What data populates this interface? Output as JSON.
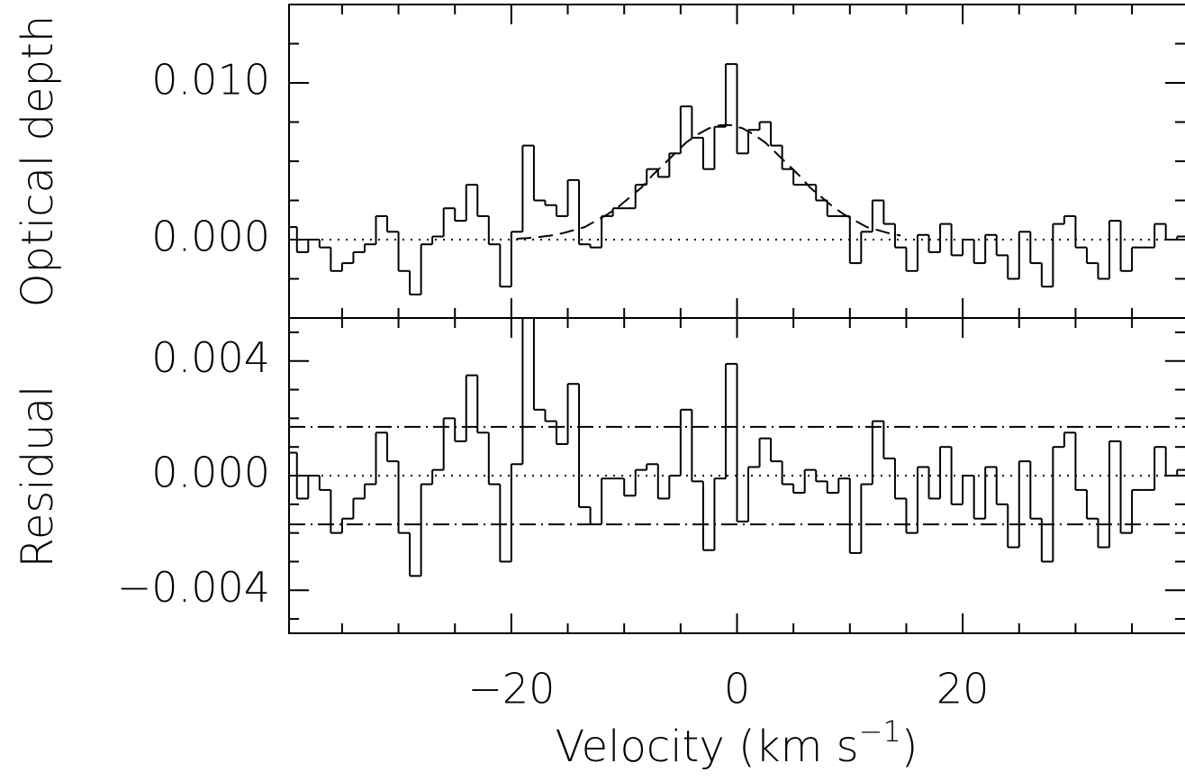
{
  "chart_data": [
    {
      "type": "step",
      "y_label": "Optical depth",
      "x": [
        -39.5,
        -38.5,
        -37.5,
        -36.5,
        -35.5,
        -34.5,
        -33.5,
        -32.5,
        -31.5,
        -30.5,
        -29.5,
        -28.5,
        -27.5,
        -26.5,
        -25.5,
        -24.5,
        -23.5,
        -22.5,
        -21.5,
        -20.5,
        -19.5,
        -18.5,
        -17.5,
        -16.5,
        -15.5,
        -14.5,
        -13.5,
        -12.5,
        -11.5,
        -10.5,
        -9.5,
        -8.5,
        -7.5,
        -6.5,
        -5.5,
        -4.5,
        -3.5,
        -2.5,
        -1.5,
        -0.5,
        0.5,
        1.5,
        2.5,
        3.5,
        4.5,
        5.5,
        6.5,
        7.5,
        8.5,
        9.5,
        10.5,
        11.5,
        12.5,
        13.5,
        14.5,
        15.5,
        16.5,
        17.5,
        18.5,
        19.5,
        20.5,
        21.5,
        22.5,
        23.5,
        24.5,
        25.5,
        26.5,
        27.5,
        28.5,
        29.5,
        30.5,
        31.5,
        32.5,
        33.5,
        34.5,
        35.5,
        36.5,
        37.5,
        38.5,
        39.5
      ],
      "values": [
        0.0008,
        -0.0008,
        0,
        -0.0005,
        -0.002,
        -0.0015,
        -0.0008,
        -0.0003,
        0.0015,
        0.0005,
        -0.002,
        -0.0035,
        -0.0003,
        0.0002,
        0.002,
        0.0012,
        0.0035,
        0.0015,
        -0.0003,
        -0.003,
        0.0005,
        0.006,
        0.0025,
        0.0022,
        0.0015,
        0.0038,
        -0.0003,
        -0.0005,
        0.0015,
        0.002,
        0.002,
        0.0035,
        0.0045,
        0.004,
        0.0055,
        0.0085,
        0.0065,
        0.0045,
        0.0072,
        0.0112,
        0.0055,
        0.007,
        0.0075,
        0.006,
        0.0045,
        0.0035,
        0.0035,
        0.0025,
        0.0015,
        0.0015,
        -0.0015,
        0.0005,
        0.0025,
        0.001,
        -0.0005,
        -0.002,
        0.0003,
        -0.0008,
        0.001,
        -0.001,
        0,
        -0.0015,
        0.0003,
        -0.001,
        -0.0025,
        0.0005,
        -0.0015,
        -0.003,
        0.001,
        0.0015,
        -0.0005,
        -0.0015,
        -0.0025,
        0.0012,
        -0.002,
        -0.0005,
        -0.0005,
        0.001,
        0,
        0.0002
      ],
      "model": {
        "x": [
          -19.5,
          -18.5,
          -17.5,
          -16.5,
          -15.5,
          -14.5,
          -13.5,
          -12.5,
          -11.5,
          -10.5,
          -9.5,
          -8.5,
          -7.5,
          -6.5,
          -5.5,
          -4.5,
          -3.5,
          -2.5,
          -1.5,
          -0.5,
          0.5,
          1.5,
          2.5,
          3.5,
          4.5,
          5.5,
          6.5,
          7.5,
          8.5,
          9.5,
          10.5,
          11.5,
          12.5,
          13.5,
          14.5
        ],
        "values": [
          6e-05,
          0.0001,
          0.00017,
          0.00026,
          0.0004,
          0.0006,
          0.0008,
          0.0012,
          0.0016,
          0.0021,
          0.0027,
          0.0033,
          0.0041,
          0.0048,
          0.0055,
          0.0062,
          0.0067,
          0.0071,
          0.0073,
          0.0073,
          0.0071,
          0.0067,
          0.0062,
          0.0055,
          0.0048,
          0.0041,
          0.0033,
          0.0027,
          0.0021,
          0.0016,
          0.0012,
          0.0008,
          0.0006,
          0.0004,
          0.00026
        ]
      },
      "zero_line": 0,
      "xlim": [
        -39.7,
        39.7
      ],
      "ylim": [
        -0.005,
        0.015
      ],
      "xticks": [
        {
          "value": -20,
          "label": "−20"
        },
        0,
        20
      ],
      "xminorticks": [
        -35,
        -30,
        -25,
        -15,
        -10,
        -5,
        5,
        10,
        15,
        25,
        30,
        35
      ],
      "yticks": [
        {
          "value": 0,
          "label": "0.000"
        },
        {
          "value": 0.01,
          "label": "0.010"
        }
      ],
      "yminorticks": [
        -0.0025,
        0.0025,
        0.005,
        0.0075,
        0.0125
      ],
      "color": "#000000"
    },
    {
      "type": "step",
      "y_label": "Residual",
      "x_label": [
        "Velocity (km s",
        "−1",
        ")"
      ],
      "x": [
        -39.5,
        -38.5,
        -37.5,
        -36.5,
        -35.5,
        -34.5,
        -33.5,
        -32.5,
        -31.5,
        -30.5,
        -29.5,
        -28.5,
        -27.5,
        -26.5,
        -25.5,
        -24.5,
        -23.5,
        -22.5,
        -21.5,
        -20.5,
        -19.5,
        -18.5,
        -17.5,
        -16.5,
        -15.5,
        -14.5,
        -13.5,
        -12.5,
        -11.5,
        -10.5,
        -9.5,
        -8.5,
        -7.5,
        -6.5,
        -5.5,
        -4.5,
        -3.5,
        -2.5,
        -1.5,
        -0.5,
        0.5,
        1.5,
        2.5,
        3.5,
        4.5,
        5.5,
        6.5,
        7.5,
        8.5,
        9.5,
        10.5,
        11.5,
        12.5,
        13.5,
        14.5,
        15.5,
        16.5,
        17.5,
        18.5,
        19.5,
        20.5,
        21.5,
        22.5,
        23.5,
        24.5,
        25.5,
        26.5,
        27.5,
        28.5,
        29.5,
        30.5,
        31.5,
        32.5,
        33.5,
        34.5,
        35.5,
        36.5,
        37.5,
        38.5,
        39.5
      ],
      "values": [
        0.0008,
        -0.0008,
        0,
        -0.0005,
        -0.002,
        -0.0015,
        -0.0008,
        -0.0003,
        0.0015,
        0.0005,
        -0.002,
        -0.0035,
        -0.0003,
        0.0002,
        0.002,
        0.0012,
        0.0035,
        0.0015,
        -0.0003,
        -0.003,
        0.0004,
        0.0059,
        0.0023,
        0.0019,
        0.0011,
        0.0032,
        -0.0011,
        -0.0017,
        -0.0001,
        -0.0001,
        -0.0007,
        0.0002,
        0.0004,
        -0.0008,
        0,
        0.0023,
        -0.0002,
        -0.0026,
        -0.0001,
        0.0039,
        -0.0016,
        0.0003,
        0.0013,
        0.0005,
        -0.0003,
        -0.0006,
        0.0002,
        -0.0002,
        -0.0006,
        -0.0001,
        -0.0027,
        -0.0003,
        0.0019,
        0.0006,
        -0.0008,
        -0.002,
        0.0003,
        -0.0008,
        0.001,
        -0.001,
        0,
        -0.0015,
        0.0003,
        -0.001,
        -0.0025,
        0.0005,
        -0.0015,
        -0.003,
        0.001,
        0.0015,
        -0.0005,
        -0.0015,
        -0.0025,
        0.0012,
        -0.002,
        -0.0005,
        -0.0005,
        0.001,
        0,
        0.0002
      ],
      "zero_line": 0,
      "sigma_lines": [
        0.0017,
        -0.0017
      ],
      "xlim": [
        -39.7,
        39.7
      ],
      "ylim": [
        -0.0055,
        0.0055
      ],
      "xticks": [
        {
          "value": -20,
          "label": "−20"
        },
        0,
        20
      ],
      "xminorticks": [
        -35,
        -30,
        -25,
        -15,
        -10,
        -5,
        5,
        10,
        15,
        25,
        30,
        35
      ],
      "yticks": [
        {
          "value": -0.004,
          "label": "−0.004"
        },
        {
          "value": 0,
          "label": "0.000"
        },
        {
          "value": 0.004,
          "label": "0.004"
        }
      ],
      "yminorticks": [
        -0.005,
        -0.003,
        -0.002,
        -0.001,
        0.001,
        0.002,
        0.003,
        0.005
      ],
      "color": "#000000"
    }
  ]
}
